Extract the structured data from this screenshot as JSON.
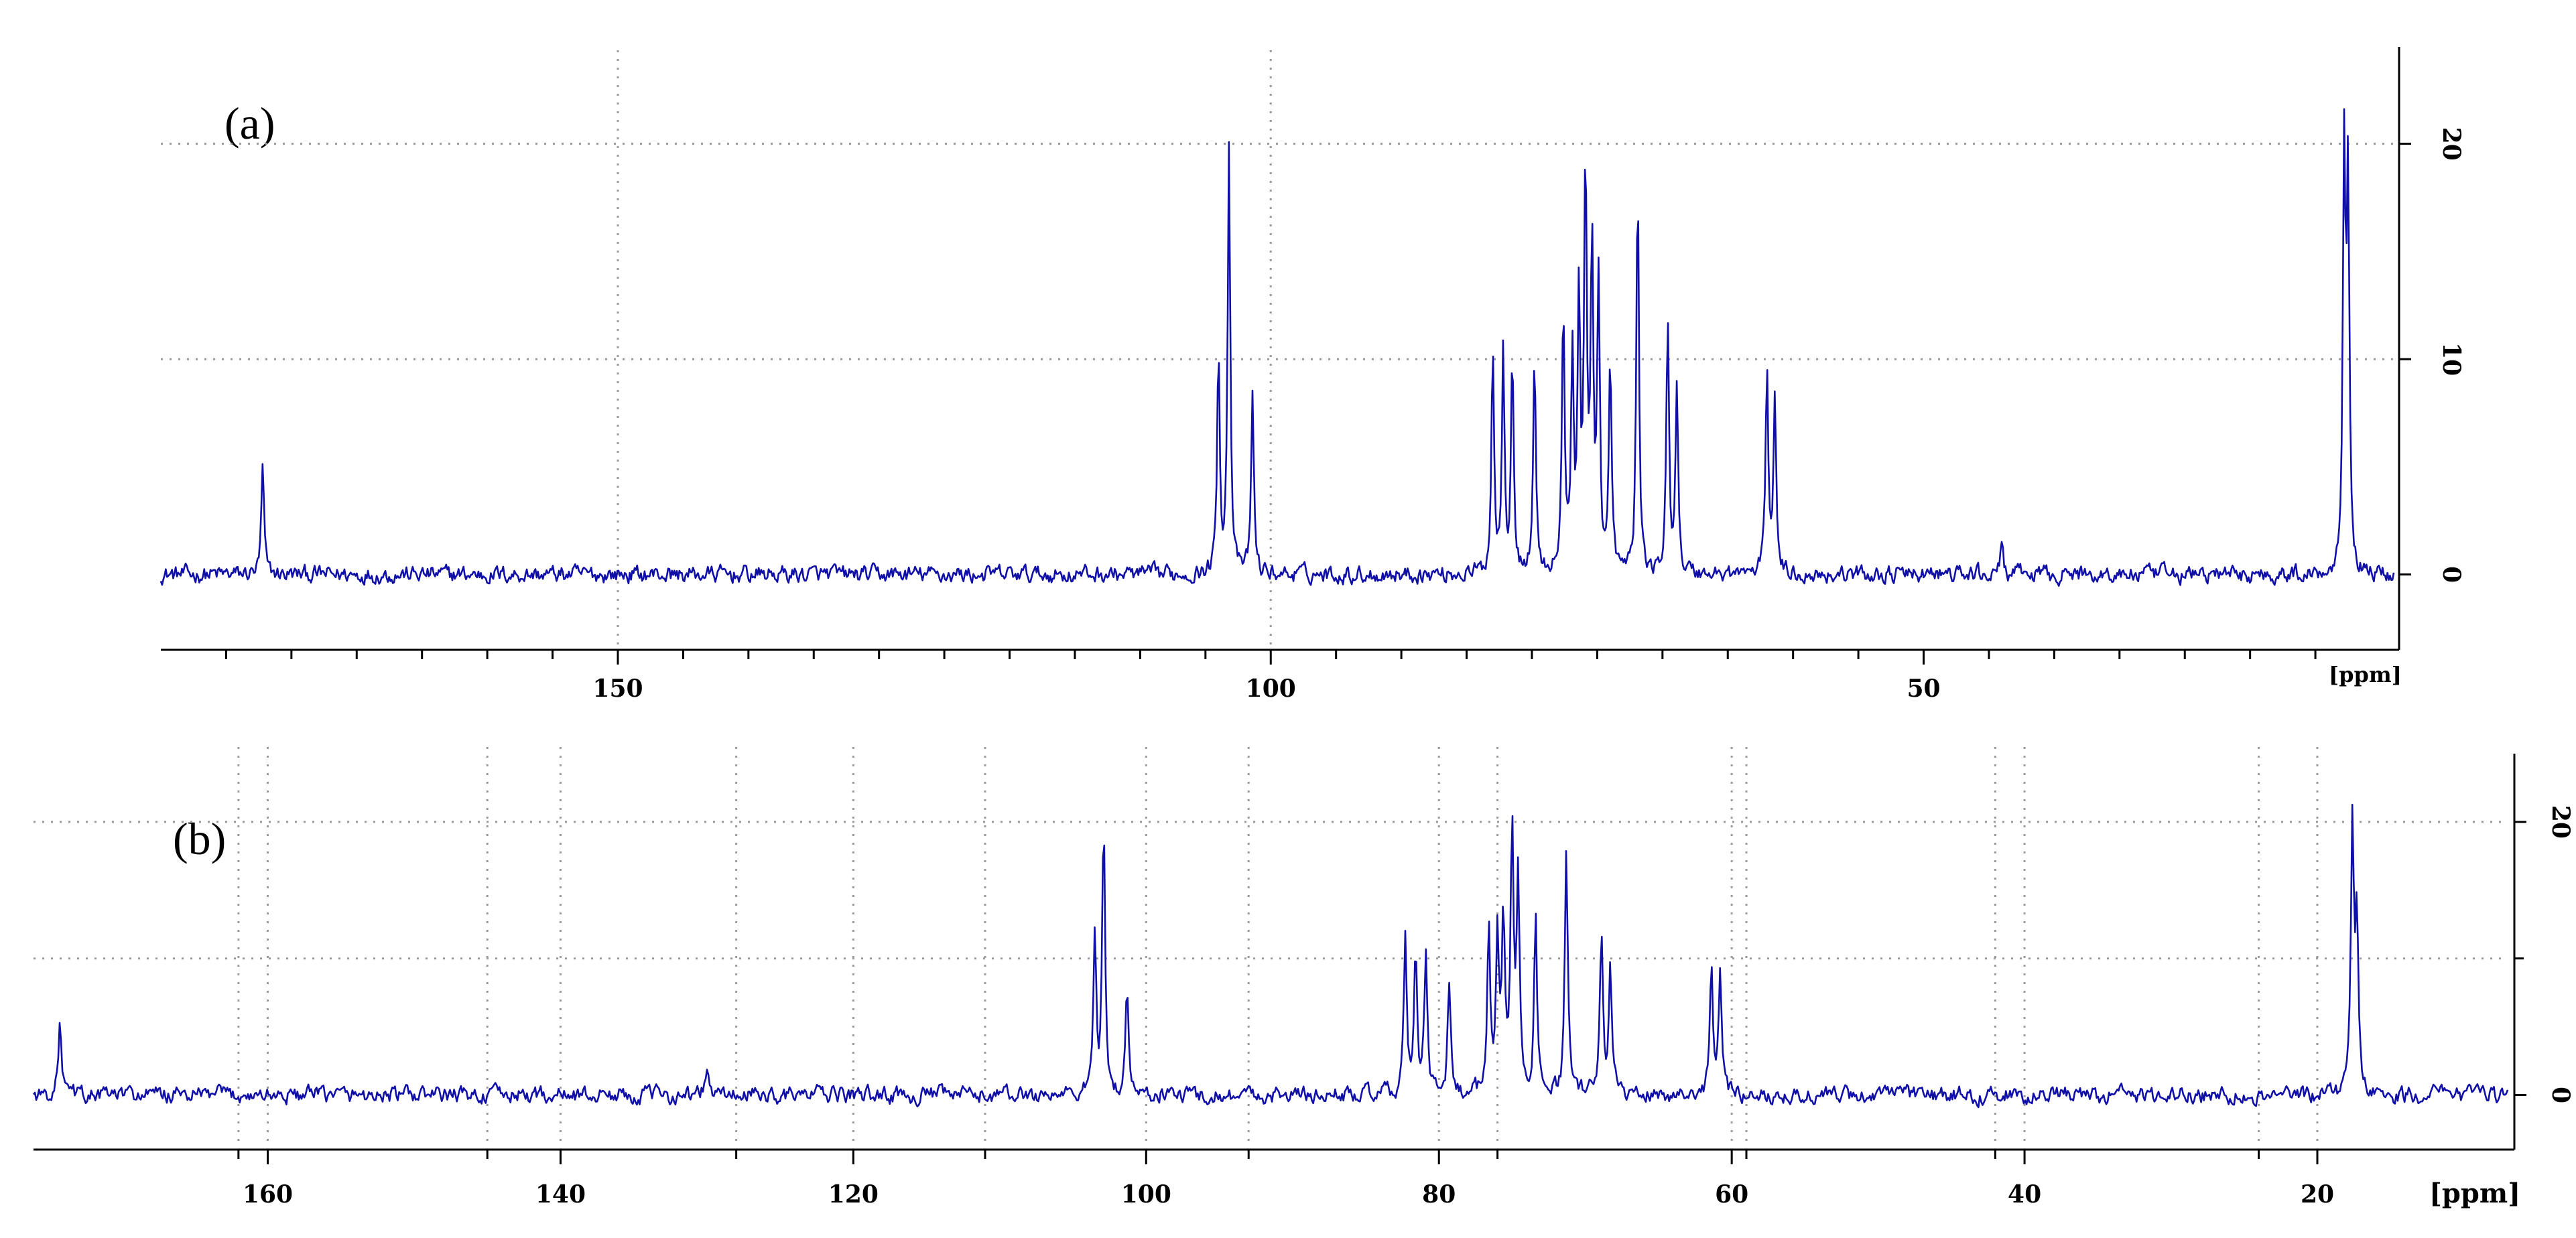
{
  "chart_data": [
    {
      "type": "line",
      "panel_label": "(a)",
      "x_unit": "[ppm]",
      "x_reversed": true,
      "xlim": [
        185,
        14
      ],
      "ylim": [
        -3.5,
        24.5
      ],
      "x_ticks": [
        150,
        100,
        50
      ],
      "x_ticks_major_grid": [
        150,
        100
      ],
      "x_ticks_minor": [
        180,
        175,
        170,
        165,
        160,
        155,
        145,
        140,
        135,
        130,
        125,
        120,
        115,
        110,
        105,
        95,
        90,
        85,
        80,
        75,
        70,
        65,
        60,
        55,
        45,
        40,
        35,
        30,
        25,
        20
      ],
      "y_ticks": [
        0,
        10,
        20
      ],
      "grid": true,
      "noise_level": 0.45,
      "baseline": 0,
      "series": [
        {
          "color": "#1010a8",
          "peaks": [
            {
              "x": 177.2,
              "y": 5.0
            },
            {
              "x": 104.0,
              "y": 10.5
            },
            {
              "x": 103.2,
              "y": 20.0
            },
            {
              "x": 101.4,
              "y": 8.5
            },
            {
              "x": 83.0,
              "y": 10.5
            },
            {
              "x": 82.2,
              "y": 10.5
            },
            {
              "x": 81.5,
              "y": 10.5
            },
            {
              "x": 79.8,
              "y": 10.2
            },
            {
              "x": 77.6,
              "y": 12.3
            },
            {
              "x": 76.9,
              "y": 10.0
            },
            {
              "x": 76.4,
              "y": 12.5
            },
            {
              "x": 75.9,
              "y": 18.5
            },
            {
              "x": 75.4,
              "y": 15.0
            },
            {
              "x": 74.9,
              "y": 13.5
            },
            {
              "x": 74.0,
              "y": 9.7
            },
            {
              "x": 71.9,
              "y": 18.2
            },
            {
              "x": 69.6,
              "y": 11.5
            },
            {
              "x": 68.9,
              "y": 9.0
            },
            {
              "x": 62.0,
              "y": 9.8
            },
            {
              "x": 61.4,
              "y": 8.5
            },
            {
              "x": 44.0,
              "y": 1.6
            },
            {
              "x": 17.8,
              "y": 19.6
            },
            {
              "x": 17.5,
              "y": 18.0
            }
          ]
        }
      ]
    },
    {
      "type": "line",
      "panel_label": "(b)",
      "x_unit": "[ppm]",
      "x_reversed": true,
      "xlim": [
        176,
        7
      ],
      "ylim": [
        -4,
        25
      ],
      "x_ticks": [
        160,
        140,
        120,
        100,
        80,
        60,
        40,
        20
      ],
      "x_ticks_major_grid": [
        160,
        140,
        120,
        100,
        80,
        60,
        40,
        20
      ],
      "x_ticks_minor": [
        162,
        145,
        128,
        111,
        93,
        76,
        59,
        42,
        24
      ],
      "y_ticks": [
        0,
        20
      ],
      "y_ticks_minor": [
        10
      ],
      "grid": true,
      "noise_level": 0.7,
      "baseline": 0,
      "series": [
        {
          "color": "#1010a8",
          "peaks": [
            {
              "x": 174.2,
              "y": 5.5
            },
            {
              "x": 130.0,
              "y": 2.2
            },
            {
              "x": 103.5,
              "y": 11.5
            },
            {
              "x": 102.9,
              "y": 19.5
            },
            {
              "x": 101.3,
              "y": 7.5
            },
            {
              "x": 82.3,
              "y": 11.0
            },
            {
              "x": 81.6,
              "y": 10.3
            },
            {
              "x": 80.9,
              "y": 10.0
            },
            {
              "x": 79.3,
              "y": 8.2
            },
            {
              "x": 76.6,
              "y": 12.8
            },
            {
              "x": 76.0,
              "y": 11.0
            },
            {
              "x": 75.6,
              "y": 13.0
            },
            {
              "x": 75.0,
              "y": 19.3
            },
            {
              "x": 74.6,
              "y": 15.3
            },
            {
              "x": 73.4,
              "y": 13.3
            },
            {
              "x": 71.3,
              "y": 18.0
            },
            {
              "x": 68.9,
              "y": 12.3
            },
            {
              "x": 68.3,
              "y": 9.8
            },
            {
              "x": 61.4,
              "y": 9.8
            },
            {
              "x": 60.8,
              "y": 8.8
            },
            {
              "x": 17.6,
              "y": 20.0
            },
            {
              "x": 17.3,
              "y": 12.0
            }
          ]
        }
      ]
    }
  ]
}
